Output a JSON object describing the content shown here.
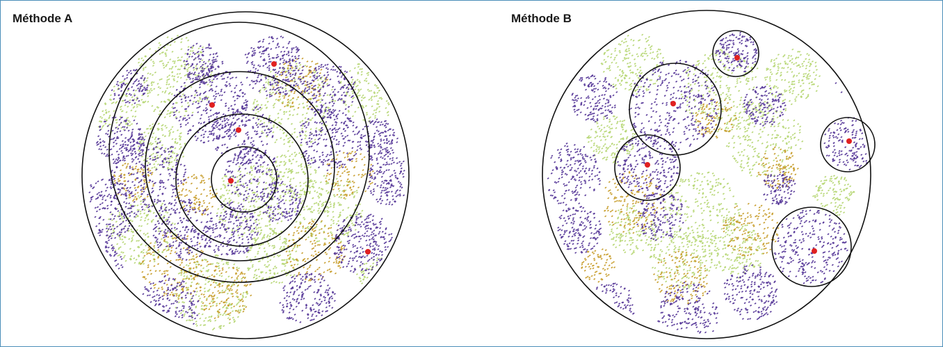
{
  "panels": [
    {
      "title": "Méthode A",
      "method": "concentric-rings",
      "center_dots": 5
    },
    {
      "title": "Méthode B",
      "method": "local-clusters",
      "center_dots": 5
    }
  ],
  "colors": {
    "frame_border": "#4a8db8",
    "cluster_purple": "#5b3d9b",
    "cluster_green": "#b9d879",
    "cluster_gold": "#c9a032",
    "center_dot": "#e02020",
    "circle_stroke": "#111111"
  }
}
